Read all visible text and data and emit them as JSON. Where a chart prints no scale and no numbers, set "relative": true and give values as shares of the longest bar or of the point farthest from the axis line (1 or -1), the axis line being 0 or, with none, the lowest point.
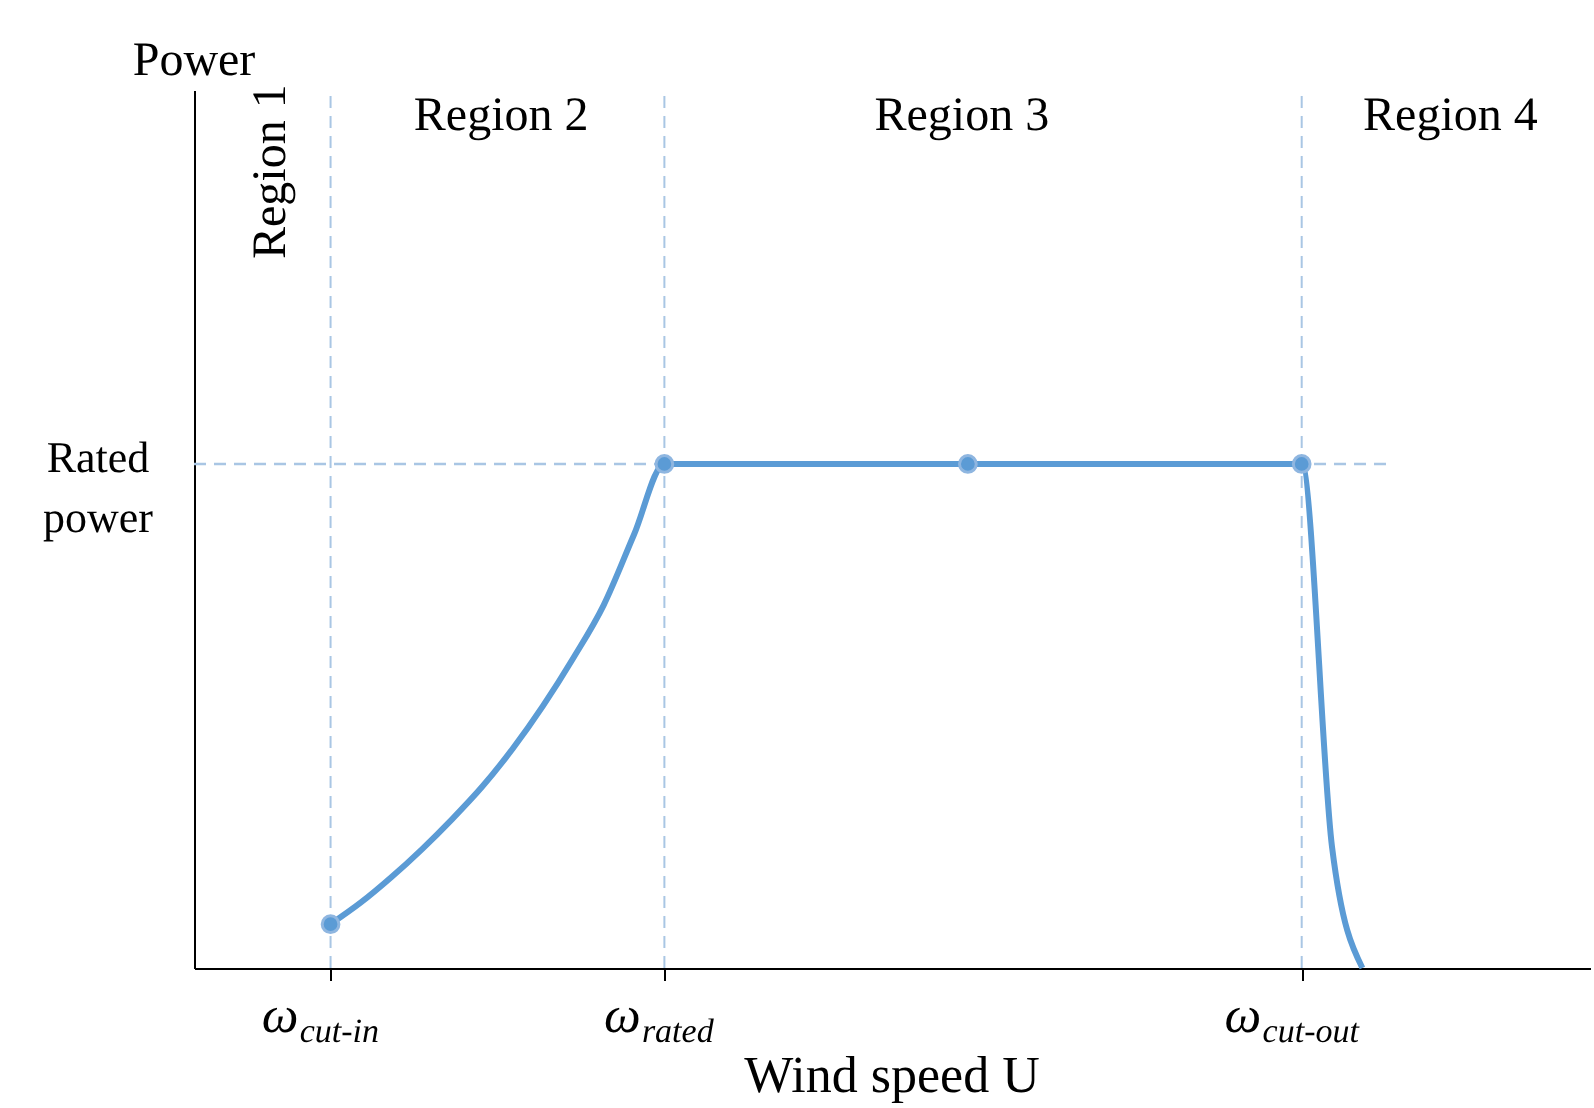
{
  "chart_data": {
    "type": "line",
    "relative": true,
    "xlabel": "Wind speed U",
    "categories": [
      null,
      null,
      null,
      null,
      "ω$_{cut-in}$",
      null,
      null,
      null,
      null,
      null,
      null,
      null,
      null,
      null,
      null,
      "ω$_{rated}$",
      null,
      null,
      null,
      null,
      null,
      null,
      null,
      null,
      null,
      null,
      null,
      null,
      null,
      null,
      null,
      null,
      null,
      null,
      null,
      null,
      "ω$_{cut-out}$",
      null,
      null,
      null,
      null,
      null,
      null,
      null,
      null,
      null
    ],
    "tick_labels": "x",
    "grid": false,
    "line_style": "solid",
    "series": [
      {
        "type": "line",
        "color": "#5b9bd5",
        "marker": "none",
        "values": [
          null,
          null,
          null,
          null,
          0.087,
          0.13,
          0.18,
          0.235,
          0.295,
          0.36,
          0.435,
          0.52,
          0.615,
          0.72,
          0.86,
          1,
          1,
          1,
          1,
          1,
          1,
          1,
          1,
          1,
          1,
          1,
          1,
          1,
          1,
          1,
          1,
          1,
          1,
          1,
          1,
          1,
          1,
          0.24,
          0,
          null,
          null,
          null,
          null,
          null,
          null,
          null
        ]
      },
      {
        "type": "scatter",
        "color": "#5b9bd5",
        "marker": "circle",
        "values": [
          null,
          null,
          null,
          null,
          0.087,
          null,
          null,
          null,
          null,
          null,
          null,
          null,
          null,
          null,
          null,
          1,
          null,
          null,
          null,
          null,
          null,
          null,
          null,
          null,
          null,
          1,
          null,
          null,
          null,
          null,
          null,
          null,
          null,
          null,
          null,
          null,
          1,
          null,
          null,
          null,
          null,
          null,
          null,
          null,
          null,
          null
        ]
      }
    ],
    "ref_lines": [
      {
        "axis": "x",
        "value": "ω$_{cut-in}$",
        "color": "#a9c6e4",
        "line_style": "dashed"
      },
      {
        "axis": "x",
        "value": "ω$_{rated}$",
        "color": "#a9c6e4",
        "line_style": "dashed"
      },
      {
        "axis": "x",
        "value": "ω$_{cut-out}$",
        "color": "#a9c6e4",
        "line_style": "dashed"
      },
      {
        "axis": "y",
        "value": 1,
        "label": "Rated power",
        "color": "#a9c6e4",
        "line_style": "dashed"
      }
    ],
    "annotations": [
      "Region 1",
      "Region 2",
      "Region 3",
      "Region 4",
      "Power"
    ]
  }
}
